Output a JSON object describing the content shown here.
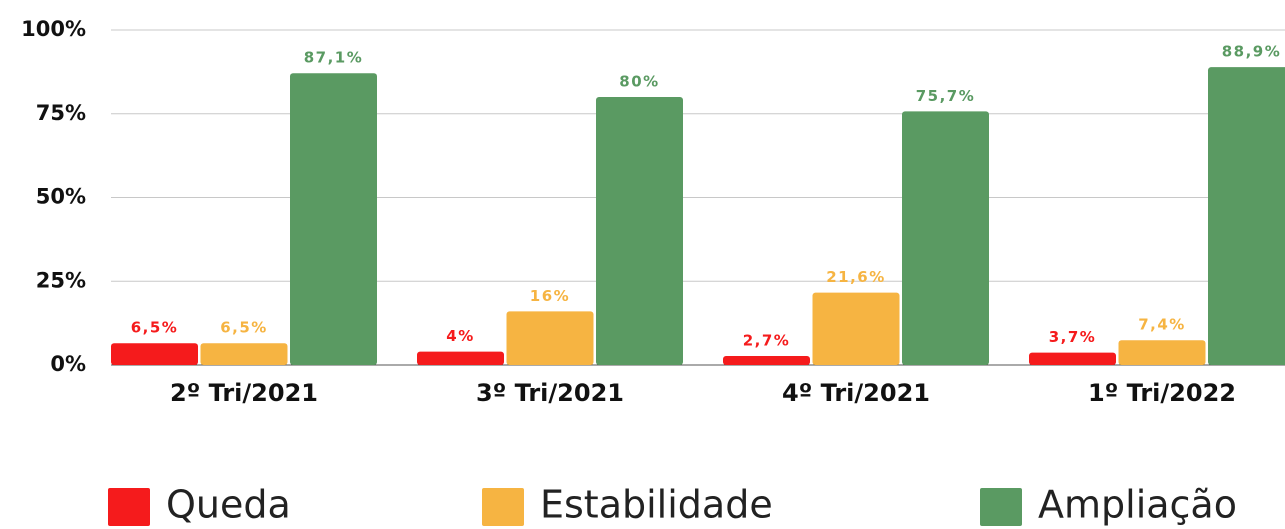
{
  "chart_data": {
    "type": "bar",
    "categories": [
      "2º Tri/2021",
      "3º Tri/2021",
      "4º Tri/2021",
      "1º Tri/2022"
    ],
    "series": [
      {
        "name": "Queda",
        "color": "#f51b1c",
        "values": [
          6.5,
          4,
          2.7,
          3.7
        ],
        "value_labels": [
          "6,5%",
          "4%",
          "2,7%",
          "3,7%"
        ]
      },
      {
        "name": "Estabilidade",
        "color": "#f6b442",
        "values": [
          6.5,
          16,
          21.6,
          7.4
        ],
        "value_labels": [
          "6,5%",
          "16%",
          "21,6%",
          "7,4%"
        ]
      },
      {
        "name": "Ampliação",
        "color": "#5a9a62",
        "values": [
          87.1,
          80,
          75.7,
          88.9
        ],
        "value_labels": [
          "87,1%",
          "80%",
          "75,7%",
          "88,9%"
        ]
      }
    ],
    "ylim": [
      0,
      100
    ],
    "yticks": [
      {
        "value": 0,
        "label": "0%"
      },
      {
        "value": 25,
        "label": "25%"
      },
      {
        "value": 50,
        "label": "50%"
      },
      {
        "value": 75,
        "label": "75%"
      },
      {
        "value": 100,
        "label": "100%"
      }
    ],
    "grid": true,
    "legend": "bottom"
  }
}
